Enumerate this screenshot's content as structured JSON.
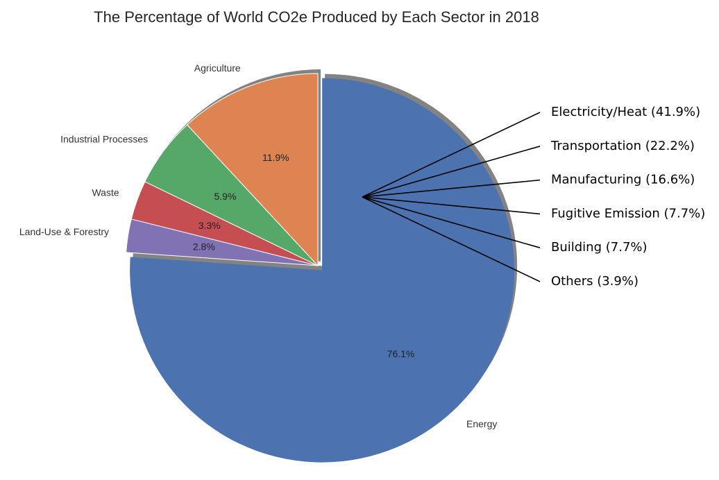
{
  "chart_data": {
    "type": "pie",
    "title": "The Percentage of World CO2e Produced by Each Sector in 2018",
    "slices": [
      {
        "label": "Energy",
        "value": 76.1,
        "pct_label": "76.1%",
        "color": "#4c72b0",
        "exploded": true
      },
      {
        "label": "Land-Use & Forestry",
        "value": 2.8,
        "pct_label": "2.8%",
        "color": "#8172b3"
      },
      {
        "label": "Waste",
        "value": 3.3,
        "pct_label": "3.3%",
        "color": "#c44e52"
      },
      {
        "label": "Industrial Processes",
        "value": 5.9,
        "pct_label": "5.9%",
        "color": "#55a868"
      },
      {
        "label": "Agriculture",
        "value": 11.9,
        "pct_label": "11.9%",
        "color": "#dd8452"
      }
    ],
    "energy_breakdown": [
      {
        "label": "Electricity/Heat (41.9%)",
        "value": 41.9
      },
      {
        "label": "Transportation (22.2%)",
        "value": 22.2
      },
      {
        "label": "Manufacturing (16.6%)",
        "value": 16.6
      },
      {
        "label": "Fugitive Emission (7.7%)",
        "value": 7.7
      },
      {
        "label": "Building (7.7%)",
        "value": 7.7
      },
      {
        "label": "Others (3.9%)",
        "value": 3.9
      }
    ],
    "shadow": true,
    "start_angle": "12 o'clock, clockwise"
  }
}
